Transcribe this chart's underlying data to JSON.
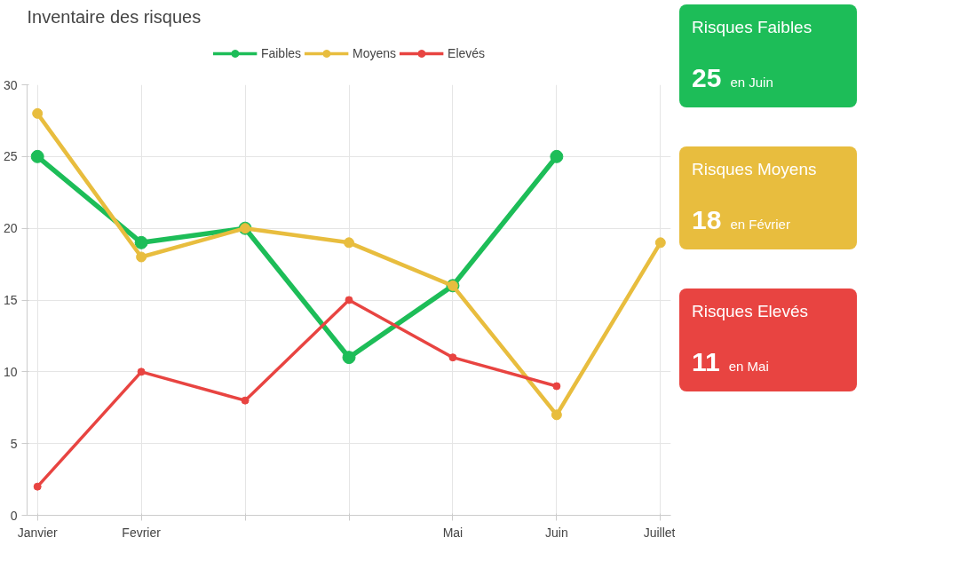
{
  "chart_data": {
    "type": "line",
    "title": "Inventaire des risques",
    "categories": [
      "Janvier",
      "Fevrier",
      null,
      null,
      "Mai",
      "Juin",
      "Juillet"
    ],
    "series": [
      {
        "name": "Faibles",
        "color": "#1dbd58",
        "values": [
          25,
          19,
          20,
          11,
          16,
          25,
          null
        ]
      },
      {
        "name": "Moyens",
        "color": "#e8bd3e",
        "values": [
          28,
          18,
          20,
          19,
          16,
          7,
          19
        ]
      },
      {
        "name": "Elevés",
        "color": "#e84441",
        "values": [
          2,
          10,
          8,
          15,
          11,
          9,
          null
        ]
      }
    ],
    "ylim": [
      0,
      30
    ],
    "yticks": [
      0,
      5,
      10,
      15,
      20,
      25,
      30
    ],
    "grid": true,
    "legend": "top",
    "marker": "circle",
    "line_style": "solid",
    "annotations": [
      "Risques Faibles",
      "25",
      "en Juin",
      "Risques Moyens",
      "18",
      "en Février",
      "Risques Elevés",
      "11",
      "en Mai"
    ]
  }
}
